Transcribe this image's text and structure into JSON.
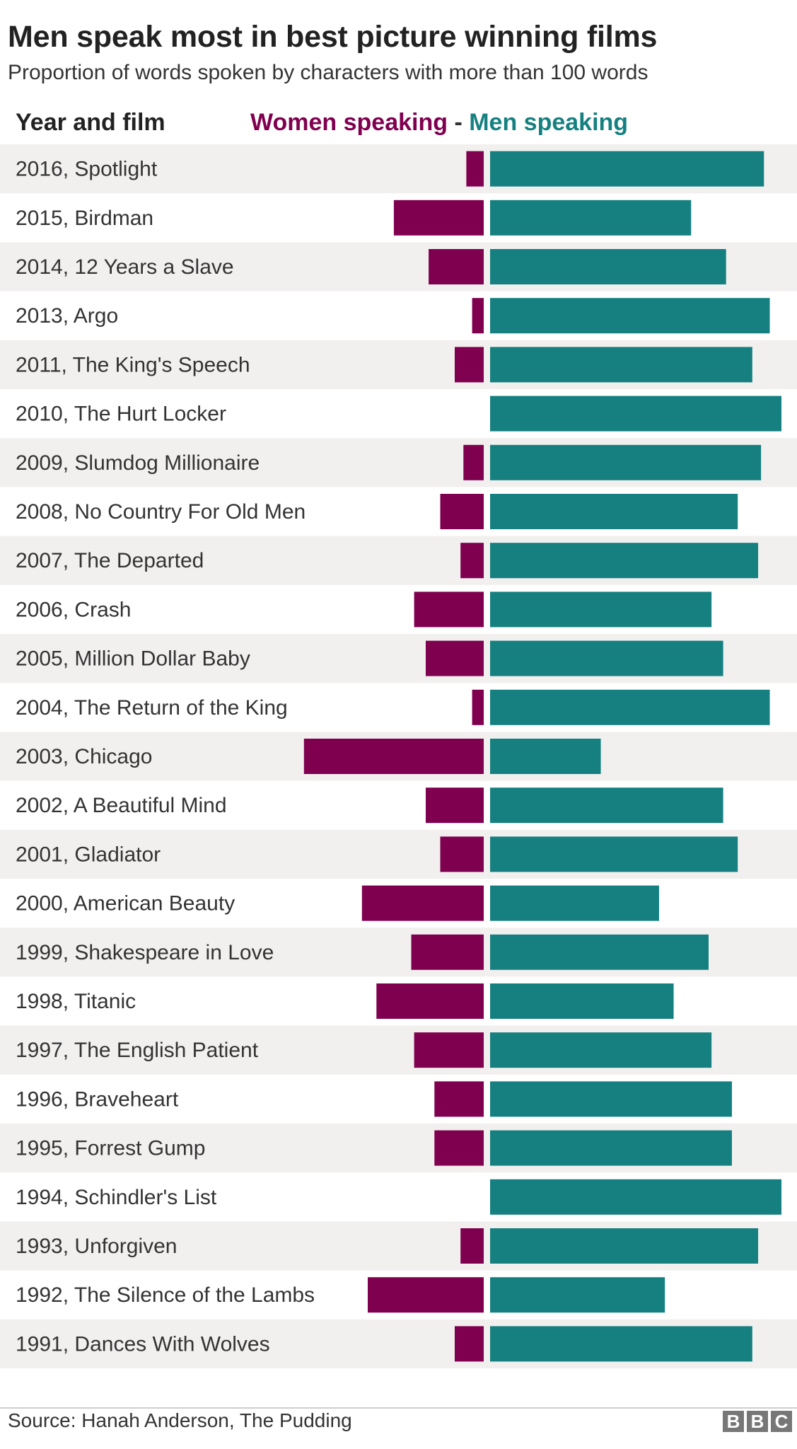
{
  "header": {
    "title": "Men speak most in best picture winning films",
    "subtitle": "Proportion of words spoken by characters with more than 100 words",
    "column_label": "Year and film"
  },
  "legend": {
    "women": "Women speaking",
    "separator": "-",
    "men": "Men speaking"
  },
  "footer": {
    "source": "Source: Hanah Anderson, The Pudding",
    "logo_letters": [
      "B",
      "B",
      "C"
    ]
  },
  "colors": {
    "women": "#800050",
    "men": "#168080",
    "row_stripe": "#f2f0ef"
  },
  "chart_data": {
    "type": "bar",
    "orientation": "horizontal-diverging",
    "unit": "percent of words spoken",
    "xlim": [
      0,
      100
    ],
    "categories": [
      "2016, Spotlight",
      "2015, Birdman",
      "2014, 12 Years a Slave",
      "2013, Argo",
      "2011, The King's Speech",
      "2010, The Hurt Locker",
      "2009, Slumdog Millionaire",
      "2008, No Country For Old Men",
      "2007, The Departed",
      "2006, Crash",
      "2005, Million Dollar Baby",
      "2004, The Return of the King",
      "2003, Chicago",
      "2002, A Beautiful Mind",
      "2001, Gladiator",
      "2000, American Beauty",
      "1999, Shakespeare in Love",
      "1998, Titanic",
      "1997, The English Patient",
      "1996, Braveheart",
      "1995, Forrest Gump",
      "1994, Schindler's List",
      "1993, Unforgiven",
      "1992, The Silence of the Lambs",
      "1991, Dances With Wolves"
    ],
    "series": [
      {
        "name": "Women speaking",
        "values": [
          6,
          31,
          19,
          4,
          10,
          0,
          7,
          15,
          8,
          24,
          20,
          4,
          62,
          20,
          15,
          42,
          25,
          37,
          24,
          17,
          17,
          0,
          8,
          40,
          10
        ]
      },
      {
        "name": "Men speaking",
        "values": [
          94,
          69,
          81,
          96,
          90,
          100,
          93,
          85,
          92,
          76,
          80,
          96,
          38,
          80,
          85,
          58,
          75,
          63,
          76,
          83,
          83,
          100,
          92,
          60,
          90
        ]
      }
    ]
  }
}
